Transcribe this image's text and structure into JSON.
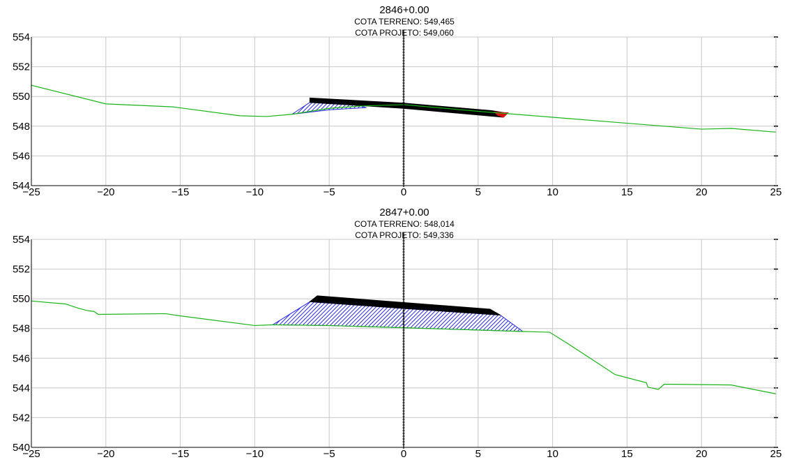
{
  "sections": [
    {
      "station": "2846+0.00",
      "cota_terreno": "COTA TERRENO: 549,465",
      "cota_projeto": "COTA PROJETO: 549,060",
      "y_ticks": [
        "554",
        "552",
        "550",
        "548",
        "546",
        "544"
      ],
      "x_ticks": [
        "−25",
        "−20",
        "−15",
        "−10",
        "−5",
        "0",
        "5",
        "10",
        "15",
        "20",
        "25"
      ],
      "chart_data": {
        "type": "line",
        "xlim": [
          -25,
          25
        ],
        "ylim": [
          544,
          554
        ],
        "series": [
          {
            "values": [
              [
                -25,
                550.75
              ],
              [
                -20,
                549.5
              ],
              [
                -15.5,
                549.3
              ],
              [
                -11,
                548.7
              ],
              [
                -9.2,
                548.65
              ],
              [
                -7.5,
                548.8
              ],
              [
                -5,
                549.2
              ],
              [
                -3,
                549.35
              ],
              [
                0,
                549.45
              ],
              [
                5,
                549.0
              ],
              [
                10,
                548.6
              ],
              [
                15,
                548.2
              ],
              [
                20,
                547.8
              ],
              [
                22,
                547.85
              ],
              [
                25,
                547.6
              ]
            ]
          }
        ],
        "layers": {
          "pavement": [
            [
              -6.3,
              549.9
            ],
            [
              0,
              549.55
            ],
            [
              5.9,
              549.05
            ],
            [
              6.8,
              548.9
            ],
            [
              7.0,
              548.9
            ],
            [
              6.7,
              548.6
            ],
            [
              0,
              549.2
            ],
            [
              -6.3,
              549.6
            ]
          ],
          "fill": [
            [
              -7.5,
              548.8
            ],
            [
              -6.3,
              549.6
            ],
            [
              -3,
              549.4
            ],
            [
              -2.5,
              549.25
            ],
            [
              -5,
              549.1
            ]
          ],
          "cut": [
            [
              6.1,
              548.95
            ],
            [
              7.0,
              548.9
            ],
            [
              6.7,
              548.6
            ],
            [
              6.3,
              548.75
            ]
          ]
        },
        "colors": {
          "terrain": "#18b418",
          "pavement": "#000000",
          "fill": "#2a2ae6",
          "cut": "#e01010"
        }
      }
    },
    {
      "station": "2847+0.00",
      "cota_terreno": "COTA TERRENO: 548,014",
      "cota_projeto": "COTA PROJETO: 549,336",
      "y_ticks": [
        "554",
        "552",
        "550",
        "548",
        "546",
        "544",
        "542",
        "540"
      ],
      "x_ticks": [
        "−25",
        "−20",
        "−15",
        "−10",
        "−5",
        "0",
        "5",
        "10",
        "15",
        "20",
        "25"
      ],
      "chart_data": {
        "type": "line",
        "xlim": [
          -25,
          25
        ],
        "ylim": [
          540,
          554
        ],
        "series": [
          {
            "values": [
              [
                -25,
                549.85
              ],
              [
                -22.7,
                549.65
              ],
              [
                -21.8,
                549.35
              ],
              [
                -21.2,
                549.2
              ],
              [
                -20.8,
                549.15
              ],
              [
                -20.5,
                548.95
              ],
              [
                -16,
                549.0
              ],
              [
                -15,
                548.85
              ],
              [
                -10,
                548.2
              ],
              [
                -8.8,
                548.25
              ],
              [
                -5,
                548.2
              ],
              [
                0,
                548.05
              ],
              [
                5,
                547.9
              ],
              [
                8,
                547.8
              ],
              [
                9.8,
                547.75
              ],
              [
                11,
                547.0
              ],
              [
                14.2,
                544.9
              ],
              [
                16.3,
                544.35
              ],
              [
                16.4,
                544.05
              ],
              [
                17.1,
                543.9
              ],
              [
                17.5,
                544.25
              ],
              [
                22,
                544.2
              ],
              [
                25,
                543.6
              ]
            ]
          }
        ],
        "layers": {
          "pavement": [
            [
              -5.8,
              550.2
            ],
            [
              0,
              549.75
            ],
            [
              5.8,
              549.3
            ],
            [
              6.5,
              548.9
            ],
            [
              0,
              549.35
            ],
            [
              -6.3,
              549.8
            ]
          ],
          "fill": [
            [
              -8.8,
              548.25
            ],
            [
              -6.3,
              549.8
            ],
            [
              0,
              549.35
            ],
            [
              6.5,
              548.9
            ],
            [
              8,
              547.8
            ],
            [
              0,
              548.05
            ],
            [
              -5,
              548.2
            ]
          ]
        },
        "colors": {
          "terrain": "#18b418",
          "pavement": "#000000",
          "fill": "#2a2ae6",
          "cut": "#e01010"
        }
      }
    }
  ]
}
